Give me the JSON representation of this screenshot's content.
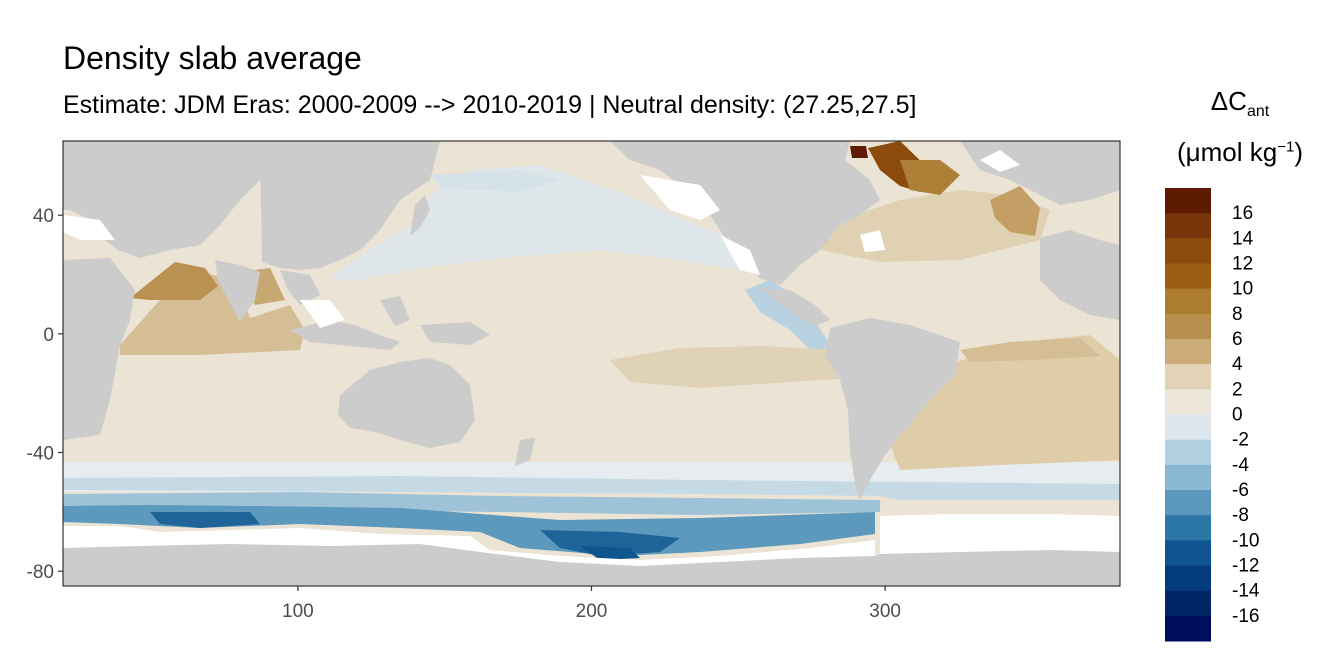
{
  "header": {
    "title": "Density slab average",
    "subtitle": "Estimate: JDM Eras: 2000-2009 --> 2010-2019 | Neutral density: (27.25,27.5]"
  },
  "map_data": {
    "type": "heatmap",
    "x_axis": {
      "range": [
        20,
        380
      ],
      "ticks": [
        100,
        200,
        300
      ],
      "tick_labels": [
        "100",
        "200",
        "300"
      ]
    },
    "y_axis": {
      "range": [
        -85,
        65
      ],
      "ticks": [
        40,
        0,
        -40,
        -80
      ],
      "tick_labels": [
        "40",
        "0",
        "-40",
        "-80"
      ]
    },
    "land_color": "#cccccc",
    "nodata_color": "#ffffff"
  },
  "legend": {
    "title_symbol": "ΔC",
    "title_subscript": "ant",
    "unit_prefix": "(μmol kg",
    "unit_exponent": "−1",
    "unit_suffix": ")",
    "labels": [
      "16",
      "14",
      "12",
      "10",
      "8",
      "6",
      "4",
      "2",
      "0",
      "-2",
      "-4",
      "-6",
      "-8",
      "-10",
      "-12",
      "-14",
      "-16"
    ],
    "colors": [
      "#5c1b02",
      "#79340a",
      "#8c4a0c",
      "#9b5e12",
      "#ac7d2f",
      "#b88f4c",
      "#cbac78",
      "#e2d3b8",
      "#ede6da",
      "#dce6ec",
      "#b2cfe0",
      "#8ab7d1",
      "#5c98bd",
      "#2c76a6",
      "#0f5690",
      "#053c7c",
      "#002468",
      "#000f5c"
    ]
  }
}
